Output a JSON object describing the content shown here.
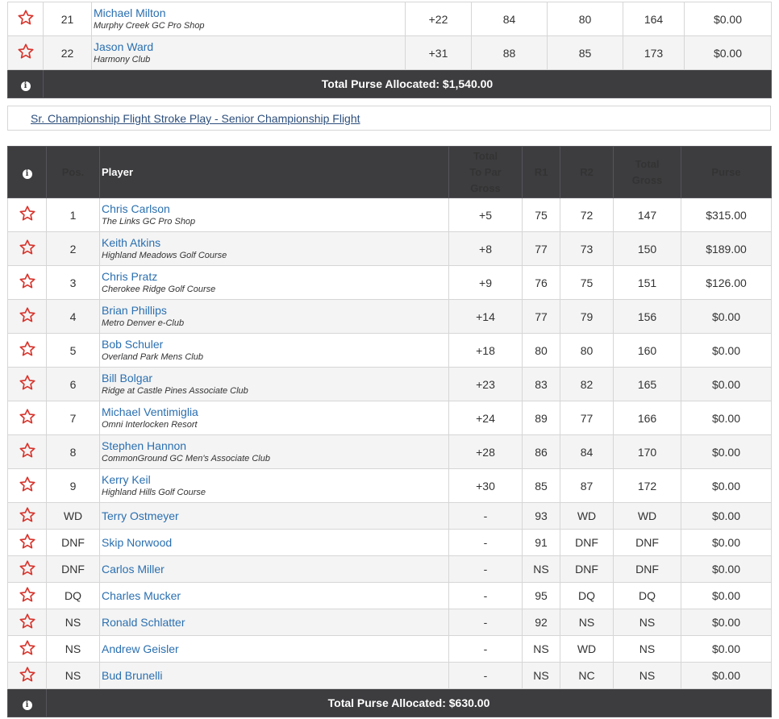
{
  "top_section": {
    "rows": [
      {
        "pos": "21",
        "name": "Michael Milton",
        "club": "Murphy Creek GC Pro Shop",
        "to_par": "+22",
        "r1": "84",
        "r2": "80",
        "total": "164",
        "purse": "$0.00"
      },
      {
        "pos": "22",
        "name": "Jason Ward",
        "club": "Harmony Club",
        "to_par": "+31",
        "r1": "88",
        "r2": "85",
        "total": "173",
        "purse": "$0.00"
      }
    ],
    "footer_total": "Total Purse Allocated: $1,540.00"
  },
  "flight_link": "Sr. Championship Flight Stroke Play - Senior Championship Flight",
  "main_section": {
    "headers": {
      "pos": "Pos.",
      "player": "Player",
      "to_par_line1": "Total",
      "to_par_line2": "To Par",
      "to_par_line3": "Gross",
      "r1": "R1",
      "r2": "R2",
      "total_line1": "Total",
      "total_line2": "Gross",
      "purse": "Purse"
    },
    "rows": [
      {
        "pos": "1",
        "name": "Chris Carlson",
        "club": "The Links GC Pro Shop",
        "to_par": "+5",
        "r1": "75",
        "r2": "72",
        "total": "147",
        "purse": "$315.00"
      },
      {
        "pos": "2",
        "name": "Keith Atkins",
        "club": "Highland Meadows Golf Course",
        "to_par": "+8",
        "r1": "77",
        "r2": "73",
        "total": "150",
        "purse": "$189.00"
      },
      {
        "pos": "3",
        "name": "Chris Pratz",
        "club": "Cherokee Ridge Golf Course",
        "to_par": "+9",
        "r1": "76",
        "r2": "75",
        "total": "151",
        "purse": "$126.00"
      },
      {
        "pos": "4",
        "name": "Brian Phillips",
        "club": "Metro Denver e-Club",
        "to_par": "+14",
        "r1": "77",
        "r2": "79",
        "total": "156",
        "purse": "$0.00"
      },
      {
        "pos": "5",
        "name": "Bob Schuler",
        "club": "Overland Park Mens Club",
        "to_par": "+18",
        "r1": "80",
        "r2": "80",
        "total": "160",
        "purse": "$0.00"
      },
      {
        "pos": "6",
        "name": "Bill Bolgar",
        "club": "Ridge at Castle Pines Associate Club",
        "to_par": "+23",
        "r1": "83",
        "r2": "82",
        "total": "165",
        "purse": "$0.00"
      },
      {
        "pos": "7",
        "name": "Michael Ventimiglia",
        "club": "Omni Interlocken Resort",
        "to_par": "+24",
        "r1": "89",
        "r2": "77",
        "total": "166",
        "purse": "$0.00"
      },
      {
        "pos": "8",
        "name": "Stephen Hannon",
        "club": "CommonGround GC Men's Associate Club",
        "to_par": "+28",
        "r1": "86",
        "r2": "84",
        "total": "170",
        "purse": "$0.00"
      },
      {
        "pos": "9",
        "name": "Kerry Keil",
        "club": "Highland Hills Golf Course",
        "to_par": "+30",
        "r1": "85",
        "r2": "87",
        "total": "172",
        "purse": "$0.00"
      },
      {
        "pos": "WD",
        "name": "Terry Ostmeyer",
        "club": "",
        "to_par": "-",
        "r1": "93",
        "r2": "WD",
        "total": "WD",
        "purse": "$0.00"
      },
      {
        "pos": "DNF",
        "name": "Skip Norwood",
        "club": "",
        "to_par": "-",
        "r1": "91",
        "r2": "DNF",
        "total": "DNF",
        "purse": "$0.00"
      },
      {
        "pos": "DNF",
        "name": "Carlos Miller",
        "club": "",
        "to_par": "-",
        "r1": "NS",
        "r2": "DNF",
        "total": "DNF",
        "purse": "$0.00"
      },
      {
        "pos": "DQ",
        "name": "Charles Mucker",
        "club": "",
        "to_par": "-",
        "r1": "95",
        "r2": "DQ",
        "total": "DQ",
        "purse": "$0.00"
      },
      {
        "pos": "NS",
        "name": "Ronald Schlatter",
        "club": "",
        "to_par": "-",
        "r1": "92",
        "r2": "NS",
        "total": "NS",
        "purse": "$0.00"
      },
      {
        "pos": "NS",
        "name": "Andrew Geisler",
        "club": "",
        "to_par": "-",
        "r1": "NS",
        "r2": "WD",
        "total": "NS",
        "purse": "$0.00"
      },
      {
        "pos": "NS",
        "name": "Bud Brunelli",
        "club": "",
        "to_par": "-",
        "r1": "NS",
        "r2": "NC",
        "total": "NS",
        "purse": "$0.00"
      }
    ],
    "footer_total": "Total Purse Allocated: $630.00"
  },
  "icons": {
    "favorite": "star-outline-icon",
    "info": "info-icon"
  },
  "colors": {
    "star": "#d9332b",
    "link": "#2a6fb0",
    "header_bg": "#3d3d40"
  }
}
